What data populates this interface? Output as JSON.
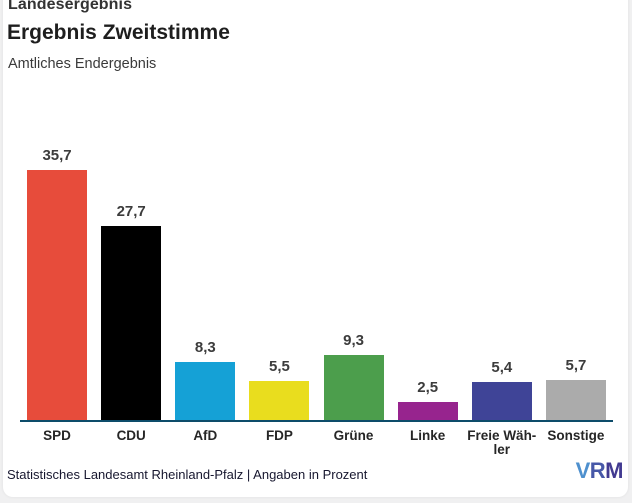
{
  "header": {
    "kicker": "Landesergebnis",
    "title": "Ergebnis Zweitstimme",
    "subtitle": "Amtliches Endergebnis"
  },
  "chart_data": {
    "type": "bar",
    "categories": [
      "SPD",
      "CDU",
      "AfD",
      "FDP",
      "Grüne",
      "Linke",
      "Freie Wähler",
      "Sonstige"
    ],
    "category_display_labels": [
      "SPD",
      "CDU",
      "AfD",
      "FDP",
      "Grüne",
      "Linke",
      "Freie Wäh-\nler",
      "Sonstige"
    ],
    "values": [
      35.7,
      27.7,
      8.3,
      5.5,
      9.3,
      2.5,
      5.4,
      5.7
    ],
    "value_labels": [
      "35,7",
      "27,7",
      "8,3",
      "5,5",
      "9,3",
      "2,5",
      "5,4",
      "5,7"
    ],
    "bar_colors": [
      "#E74C3B",
      "#000000",
      "#15A1D6",
      "#E9DD1E",
      "#4C9E4C",
      "#97248E",
      "#3F4497",
      "#ABABAB"
    ],
    "title": "Ergebnis Zweitstimme",
    "subtitle": "Amtliches Endergebnis",
    "xlabel": "",
    "ylabel": "",
    "unit": "Prozent",
    "ylim": [
      0,
      38
    ],
    "grid": false,
    "legend": false,
    "axis_line_color": "#0D4C6A"
  },
  "footer": {
    "source": "Statistisches Landesamt Rheinland-Pfalz | Angaben in Prozent",
    "logo_text": "VRM",
    "logo_letter_colors": [
      "#4E90CE",
      "#4758A8",
      "#423A91"
    ]
  },
  "colors": {
    "background": "#F0F0F1",
    "card": "#FFFFFF",
    "value_label": "#3C3C3C",
    "category_label": "#262626"
  }
}
